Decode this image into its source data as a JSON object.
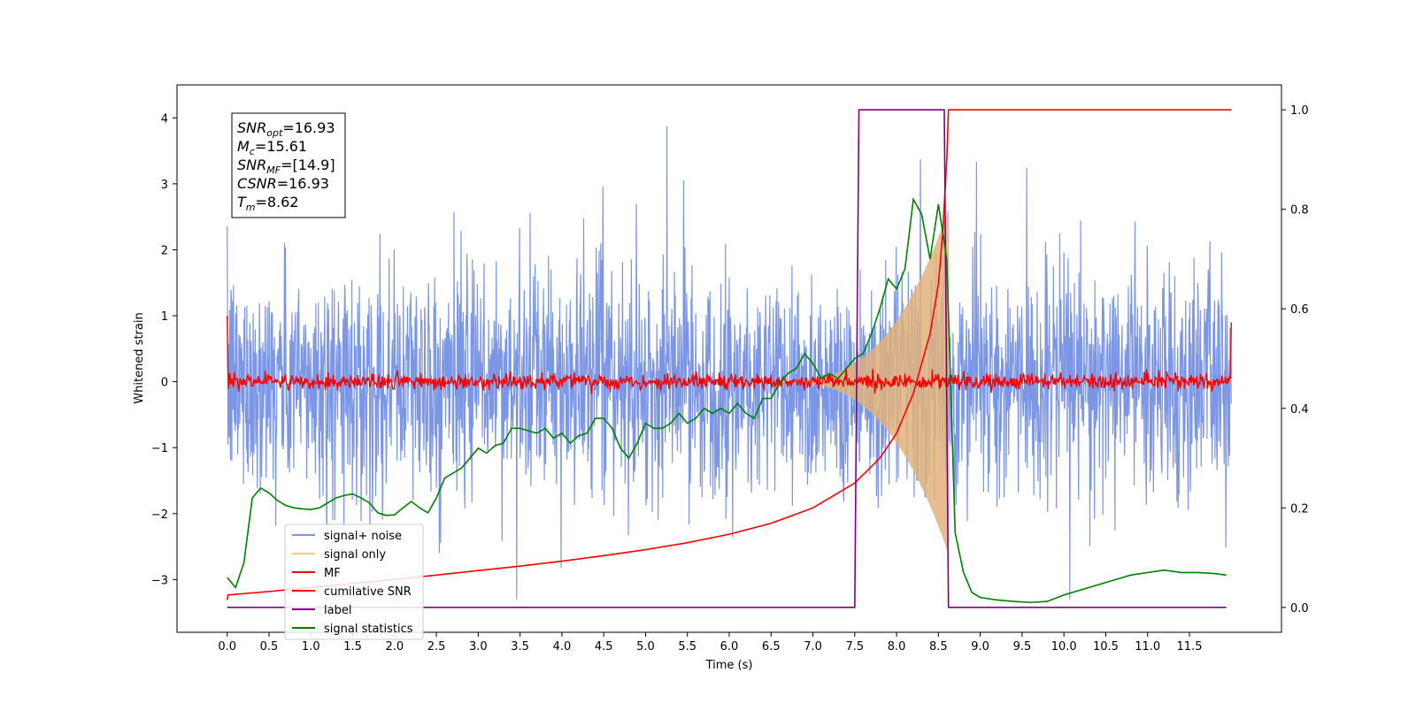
{
  "chart_data": {
    "type": "line",
    "xlabel": "Time (s)",
    "ylabel_left": "Whitened strain",
    "ylabel_right": "",
    "x_range": [
      -0.6,
      12.6
    ],
    "y_left_range": [
      -3.8,
      4.5
    ],
    "y_right_range": [
      -0.05,
      1.05
    ],
    "x_ticks": [
      "0.0",
      "0.5",
      "1.0",
      "1.5",
      "2.0",
      "2.5",
      "3.0",
      "3.5",
      "4.0",
      "4.5",
      "5.0",
      "5.5",
      "6.0",
      "6.5",
      "7.0",
      "7.5",
      "8.0",
      "8.5",
      "9.0",
      "9.5",
      "10.0",
      "10.5",
      "11.0",
      "11.5"
    ],
    "y_left_ticks": [
      "4",
      "3",
      "2",
      "1",
      "0",
      "−1",
      "−2",
      "−3"
    ],
    "y_left_tick_values": [
      4,
      3,
      2,
      1,
      0,
      -1,
      -2,
      -3
    ],
    "y_right_ticks": [
      "1.0",
      "0.8",
      "0.6",
      "0.4",
      "0.2",
      "0.0"
    ],
    "y_right_tick_values": [
      1.0,
      0.8,
      0.6,
      0.4,
      0.2,
      0.0
    ],
    "info_box": {
      "lines": [
        {
          "base": "SNR",
          "sub": "opt",
          "value": "=16.93"
        },
        {
          "base": "M",
          "sub": "c",
          "value": "=15.61"
        },
        {
          "base": "SNR",
          "sub": "MF",
          "value": "=[14.9]"
        },
        {
          "base": "CSNR",
          "sub": "",
          "value": "=16.93"
        },
        {
          "base": "T",
          "sub": "m",
          "value": "=8.62"
        }
      ]
    },
    "legend": {
      "placement": "lower-left",
      "entries": [
        {
          "label": "signal+ noise",
          "color": "#7b96e6"
        },
        {
          "label": "signal only",
          "color": "#f5cf8a"
        },
        {
          "label": "MF",
          "color": "#ff0000"
        },
        {
          "label": "cumilative SNR",
          "color": "#ff0000"
        },
        {
          "label": "label",
          "color": "#800080"
        },
        {
          "label": "signal statistics",
          "color": "#008000"
        }
      ]
    },
    "series": [
      {
        "name": "signal+ noise",
        "axis": "left",
        "color": "#7b96e6",
        "kind": "noise",
        "x_range": [
          0.0,
          12.0
        ],
        "envelope": [
          -3.3,
          4.15
        ]
      },
      {
        "name": "signal only",
        "axis": "left",
        "color": "#e0b27a",
        "kind": "chirp",
        "x_range": [
          6.5,
          8.62
        ],
        "peak_amplitude": 2.6
      },
      {
        "name": "MF",
        "axis": "left",
        "color": "#ff0000",
        "kind": "noise_small",
        "x_range": [
          0.0,
          12.0
        ],
        "start_value": 1.0,
        "end_value": 0.9
      },
      {
        "name": "cumilative SNR",
        "axis": "right",
        "color": "#ff0000",
        "x": [
          0.0,
          0.01,
          0.5,
          1.0,
          1.5,
          2.0,
          2.5,
          3.0,
          3.5,
          4.0,
          4.5,
          5.0,
          5.5,
          6.0,
          6.5,
          7.0,
          7.5,
          7.8,
          8.0,
          8.2,
          8.4,
          8.5,
          8.55,
          8.6,
          8.62,
          9.0,
          12.0
        ],
        "y": [
          0.015,
          0.025,
          0.032,
          0.04,
          0.048,
          0.056,
          0.065,
          0.074,
          0.083,
          0.093,
          0.104,
          0.116,
          0.13,
          0.147,
          0.169,
          0.2,
          0.25,
          0.3,
          0.35,
          0.43,
          0.55,
          0.65,
          0.75,
          0.9,
          1.0,
          1.0,
          1.0
        ]
      },
      {
        "name": "label",
        "axis": "right",
        "color": "#800080",
        "x": [
          0.0,
          7.5,
          7.55,
          8.57,
          8.62,
          11.94
        ],
        "y": [
          0.0,
          0.0,
          1.0,
          1.0,
          0.0,
          0.0
        ]
      },
      {
        "name": "signal statistics",
        "axis": "right",
        "color": "#008000",
        "x": [
          0.0,
          0.1,
          0.2,
          0.3,
          0.4,
          0.5,
          0.6,
          0.7,
          0.8,
          0.9,
          1.0,
          1.1,
          1.2,
          1.3,
          1.4,
          1.5,
          1.6,
          1.7,
          1.8,
          1.9,
          2.0,
          2.1,
          2.2,
          2.3,
          2.4,
          2.5,
          2.6,
          2.7,
          2.8,
          2.9,
          3.0,
          3.1,
          3.2,
          3.3,
          3.4,
          3.5,
          3.6,
          3.7,
          3.8,
          3.9,
          4.0,
          4.1,
          4.2,
          4.3,
          4.4,
          4.5,
          4.6,
          4.7,
          4.8,
          4.9,
          5.0,
          5.1,
          5.2,
          5.3,
          5.4,
          5.5,
          5.6,
          5.7,
          5.8,
          5.9,
          6.0,
          6.1,
          6.2,
          6.3,
          6.4,
          6.5,
          6.6,
          6.7,
          6.8,
          6.9,
          7.0,
          7.1,
          7.2,
          7.3,
          7.4,
          7.5,
          7.6,
          7.7,
          7.8,
          7.9,
          8.0,
          8.1,
          8.2,
          8.3,
          8.4,
          8.5,
          8.6,
          8.7,
          8.8,
          8.9,
          9.0,
          9.2,
          9.4,
          9.6,
          9.8,
          10.0,
          10.2,
          10.4,
          10.6,
          10.8,
          11.0,
          11.2,
          11.4,
          11.6,
          11.8,
          11.94
        ],
        "y": [
          0.06,
          0.04,
          0.09,
          0.22,
          0.24,
          0.23,
          0.215,
          0.205,
          0.2,
          0.198,
          0.197,
          0.2,
          0.21,
          0.22,
          0.225,
          0.228,
          0.22,
          0.21,
          0.19,
          0.185,
          0.186,
          0.2,
          0.213,
          0.2,
          0.19,
          0.22,
          0.26,
          0.27,
          0.28,
          0.3,
          0.32,
          0.31,
          0.325,
          0.33,
          0.36,
          0.36,
          0.355,
          0.35,
          0.36,
          0.34,
          0.35,
          0.33,
          0.345,
          0.35,
          0.38,
          0.38,
          0.36,
          0.32,
          0.3,
          0.33,
          0.37,
          0.36,
          0.36,
          0.37,
          0.39,
          0.37,
          0.38,
          0.4,
          0.39,
          0.4,
          0.39,
          0.41,
          0.39,
          0.38,
          0.42,
          0.42,
          0.45,
          0.47,
          0.48,
          0.51,
          0.49,
          0.46,
          0.47,
          0.46,
          0.48,
          0.5,
          0.51,
          0.55,
          0.6,
          0.66,
          0.64,
          0.68,
          0.82,
          0.79,
          0.7,
          0.81,
          0.7,
          0.15,
          0.07,
          0.03,
          0.02,
          0.015,
          0.012,
          0.01,
          0.012,
          0.025,
          0.035,
          0.045,
          0.055,
          0.065,
          0.07,
          0.075,
          0.07,
          0.07,
          0.068,
          0.065
        ]
      }
    ]
  }
}
